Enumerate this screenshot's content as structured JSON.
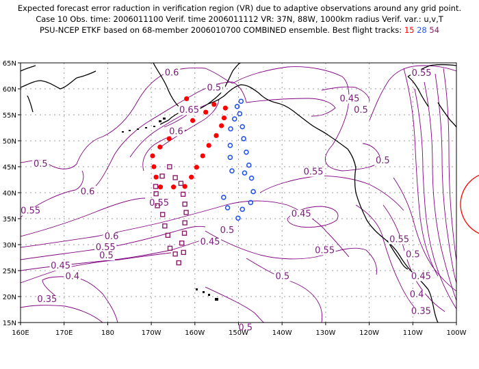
{
  "header": {
    "line1": "Expected forecast error raduction in verification region (VR) due to adaptive observations around any grid point.",
    "line2": "Case 10   Obs. time: 2006011100   Verif. time 2006011112   VR: 37N, 88W, 1000km radius   Verif. var.: u,v,T",
    "line3_prefix": "PSU-NCEP ETKF based on 68-member 2006010700 COMBINED ensemble.   Best flight tracks:",
    "track_labels": [
      "15",
      "28",
      "54"
    ]
  },
  "colors": {
    "contour": "#800080",
    "coast": "#000000",
    "grid": "#9a9a9a",
    "track_15": "#ff0000",
    "track_28": "#2255ee",
    "track_54": "#8b1a6b",
    "vr_circle": "#ff0000"
  },
  "axes": {
    "lat_ticks": [
      "15N",
      "20N",
      "25N",
      "30N",
      "35N",
      "40N",
      "45N",
      "50N",
      "55N",
      "60N",
      "65N"
    ],
    "lon_ticks": [
      "160E",
      "170E",
      "180",
      "170W",
      "160W",
      "150W",
      "140W",
      "130W",
      "120W",
      "110W",
      "100W"
    ]
  },
  "contour_labels": [
    {
      "text": "0.6",
      "lon": -165.3,
      "lat": 62.7
    },
    {
      "text": "0.65",
      "lon": -161.3,
      "lat": 55.5
    },
    {
      "text": "0.6",
      "lon": -164.3,
      "lat": 51.4
    },
    {
      "text": "0.5",
      "lon": -155.0,
      "lat": 59.8
    },
    {
      "text": "0.45",
      "lon": -124.5,
      "lat": 57.7
    },
    {
      "text": "0.5",
      "lon": -121.9,
      "lat": 55.5
    },
    {
      "text": "0.55",
      "lon": -108.0,
      "lat": 62.6
    },
    {
      "text": "0.5",
      "lon": -155.6,
      "lat": 59.8
    },
    {
      "text": "0.5",
      "lon": -116.9,
      "lat": 45.8
    },
    {
      "text": "0.55",
      "lon": -132.8,
      "lat": 43.6
    },
    {
      "text": "0.5",
      "lon": 164.6,
      "lat": 45.1
    },
    {
      "text": "0.6",
      "lon": 175.4,
      "lat": 39.8
    },
    {
      "text": "0.55",
      "lon": 162.3,
      "lat": 36.1
    },
    {
      "text": "0.55",
      "lon": -168.2,
      "lat": 37.6
    },
    {
      "text": "0.45",
      "lon": -135.6,
      "lat": 35.5
    },
    {
      "text": "0.5",
      "lon": -152.6,
      "lat": 32.4
    },
    {
      "text": "0.6",
      "lon": 180.9,
      "lat": 31.2
    },
    {
      "text": "0.55",
      "lon": 179.5,
      "lat": 29.1
    },
    {
      "text": "0.5",
      "lon": 179.7,
      "lat": 27.5
    },
    {
      "text": "0.45",
      "lon": -156.5,
      "lat": 30.1
    },
    {
      "text": "0.55",
      "lon": -130.2,
      "lat": 28.5
    },
    {
      "text": "0.55",
      "lon": -113.1,
      "lat": 30.6
    },
    {
      "text": "0.5",
      "lon": -110.0,
      "lat": 27.7
    },
    {
      "text": "0.45",
      "lon": 169.2,
      "lat": 25.5
    },
    {
      "text": "0.4",
      "lon": 171.9,
      "lat": 23.5
    },
    {
      "text": "0.5",
      "lon": -139.9,
      "lat": 23.5
    },
    {
      "text": "0.45",
      "lon": -108.1,
      "lat": 23.5
    },
    {
      "text": "0.4",
      "lon": -109.1,
      "lat": 20.0
    },
    {
      "text": "0.35",
      "lon": 166.1,
      "lat": 19.1
    },
    {
      "text": "0.35",
      "lon": -108.1,
      "lat": 16.8
    },
    {
      "text": "0.5",
      "lon": -148.4,
      "lat": 13.6
    }
  ],
  "tracks": [
    {
      "name": "15",
      "marker": "dot",
      "points": [
        [
          -155.6,
          57.0
        ],
        [
          -157.5,
          55.5
        ],
        [
          -160.5,
          53.9
        ],
        [
          -153.0,
          56.3
        ],
        [
          -153.3,
          54.4
        ],
        [
          -153.9,
          52.9
        ],
        [
          -155.1,
          51.0
        ],
        [
          -156.8,
          49.1
        ],
        [
          -158.2,
          47.1
        ],
        [
          -159.6,
          44.9
        ],
        [
          -160.8,
          43.0
        ],
        [
          -162.3,
          41.2
        ],
        [
          -164.9,
          41.1
        ],
        [
          -167.9,
          41.1
        ],
        [
          -168.9,
          43.0
        ],
        [
          -169.4,
          45.0
        ],
        [
          -169.7,
          47.1
        ],
        [
          -168.0,
          48.8
        ],
        [
          -165.9,
          50.4
        ],
        [
          -161.9,
          58.1
        ]
      ]
    },
    {
      "name": "28",
      "marker": "ring",
      "points": [
        [
          -149.4,
          57.6
        ],
        [
          -150.3,
          56.6
        ],
        [
          -149.7,
          55.2
        ],
        [
          -150.9,
          54.2
        ],
        [
          -149.1,
          52.7
        ],
        [
          -151.8,
          52.3
        ],
        [
          -148.8,
          50.4
        ],
        [
          -151.9,
          49.1
        ],
        [
          -148.2,
          47.8
        ],
        [
          -151.9,
          46.8
        ],
        [
          -147.6,
          45.3
        ],
        [
          -148.6,
          43.8
        ],
        [
          -147.0,
          42.8
        ],
        [
          -146.6,
          40.2
        ],
        [
          -147.2,
          38.1
        ],
        [
          -149.1,
          36.8
        ],
        [
          -150.1,
          35.1
        ],
        [
          -152.5,
          37.1
        ],
        [
          -153.4,
          39.1
        ],
        [
          -151.5,
          44.2
        ]
      ]
    },
    {
      "name": "54",
      "marker": "square",
      "points": [
        [
          -169.0,
          41.2
        ],
        [
          -168.9,
          39.8
        ],
        [
          -168.6,
          37.5
        ],
        [
          -167.4,
          35.8
        ],
        [
          -166.9,
          33.6
        ],
        [
          -166.2,
          31.8
        ],
        [
          -165.7,
          29.3
        ],
        [
          -164.5,
          28.2
        ],
        [
          -163.7,
          26.5
        ],
        [
          -162.6,
          28.5
        ],
        [
          -163.0,
          30.3
        ],
        [
          -162.4,
          32.2
        ],
        [
          -162.3,
          34.2
        ],
        [
          -162.0,
          36.2
        ],
        [
          -162.3,
          37.8
        ],
        [
          -162.7,
          39.7
        ],
        [
          -163.2,
          41.8
        ],
        [
          -164.5,
          42.9
        ],
        [
          -165.8,
          45.0
        ],
        [
          -167.5,
          43.2
        ]
      ]
    }
  ]
}
